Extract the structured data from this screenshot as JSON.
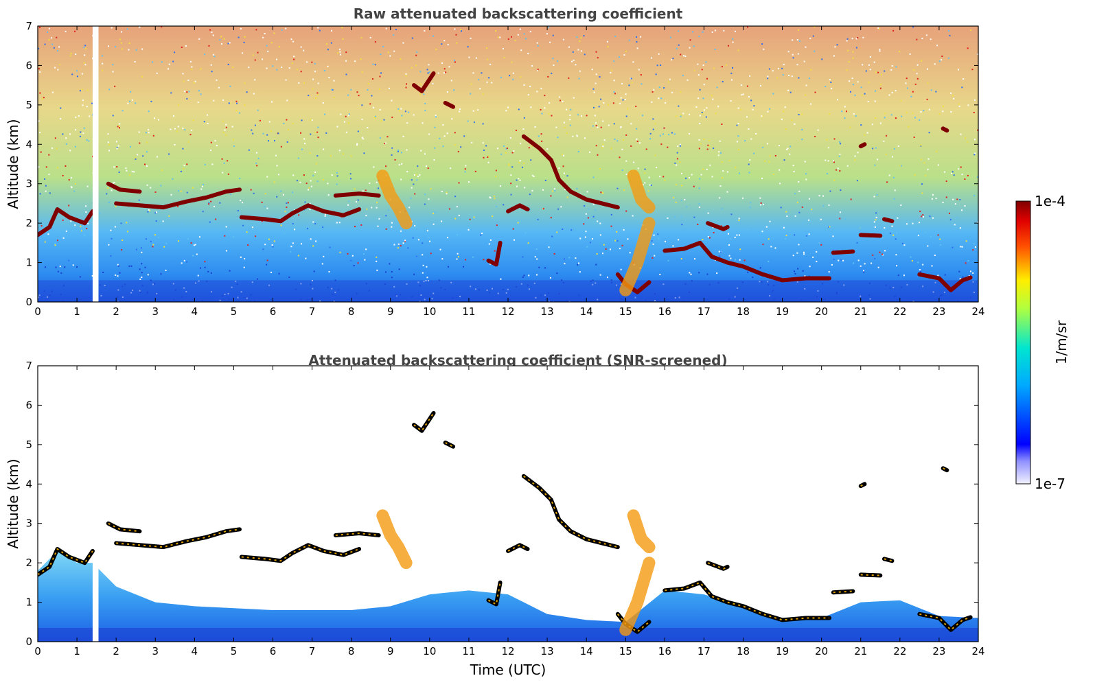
{
  "chart_data": [
    {
      "type": "heatmap",
      "title": "Raw attenuated backscattering coefficient",
      "xlabel": "",
      "ylabel": "Altitude (km)",
      "xlim": [
        0,
        24
      ],
      "ylim": [
        0,
        7
      ],
      "x_ticks": [
        "0",
        "1",
        "2",
        "3",
        "4",
        "5",
        "6",
        "7",
        "8",
        "9",
        "10",
        "11",
        "12",
        "13",
        "14",
        "15",
        "16",
        "17",
        "18",
        "19",
        "20",
        "21",
        "22",
        "23",
        "24"
      ],
      "y_ticks": [
        "0",
        "1",
        "2",
        "3",
        "4",
        "5",
        "6",
        "7"
      ],
      "features": [
        {
          "kind": "layer",
          "points": [
            [
              0.0,
              1.7
            ],
            [
              0.3,
              1.9
            ],
            [
              0.5,
              2.35
            ],
            [
              0.8,
              2.15
            ],
            [
              1.2,
              2.0
            ],
            [
              1.4,
              2.3
            ]
          ]
        },
        {
          "kind": "layer",
          "points": [
            [
              1.8,
              3.0
            ],
            [
              2.1,
              2.85
            ],
            [
              2.6,
              2.8
            ]
          ]
        },
        {
          "kind": "layer",
          "points": [
            [
              2.0,
              2.5
            ],
            [
              2.6,
              2.45
            ],
            [
              3.2,
              2.4
            ],
            [
              3.8,
              2.55
            ],
            [
              4.3,
              2.65
            ],
            [
              4.8,
              2.8
            ],
            [
              5.15,
              2.85
            ]
          ]
        },
        {
          "kind": "layer",
          "points": [
            [
              5.2,
              2.15
            ],
            [
              5.8,
              2.1
            ],
            [
              6.2,
              2.05
            ],
            [
              6.5,
              2.25
            ],
            [
              6.9,
              2.45
            ],
            [
              7.3,
              2.3
            ],
            [
              7.8,
              2.2
            ],
            [
              8.2,
              2.35
            ]
          ]
        },
        {
          "kind": "layer",
          "points": [
            [
              7.6,
              2.7
            ],
            [
              8.2,
              2.75
            ],
            [
              8.7,
              2.7
            ]
          ]
        },
        {
          "kind": "layer",
          "points": [
            [
              9.6,
              5.5
            ],
            [
              9.8,
              5.35
            ],
            [
              10.1,
              5.8
            ]
          ]
        },
        {
          "kind": "layer",
          "points": [
            [
              10.4,
              5.05
            ],
            [
              10.6,
              4.95
            ]
          ]
        },
        {
          "kind": "layer",
          "points": [
            [
              11.5,
              1.05
            ],
            [
              11.7,
              0.95
            ],
            [
              11.8,
              1.5
            ]
          ]
        },
        {
          "kind": "layer",
          "points": [
            [
              12.0,
              2.3
            ],
            [
              12.3,
              2.45
            ],
            [
              12.5,
              2.35
            ]
          ]
        },
        {
          "kind": "layer",
          "points": [
            [
              12.4,
              4.2
            ],
            [
              12.8,
              3.9
            ],
            [
              13.1,
              3.6
            ],
            [
              13.3,
              3.1
            ],
            [
              13.6,
              2.8
            ],
            [
              14.0,
              2.6
            ],
            [
              14.4,
              2.5
            ],
            [
              14.8,
              2.4
            ]
          ]
        },
        {
          "kind": "layer",
          "points": [
            [
              14.8,
              0.7
            ],
            [
              15.0,
              0.45
            ],
            [
              15.3,
              0.25
            ],
            [
              15.6,
              0.5
            ]
          ]
        },
        {
          "kind": "layer",
          "points": [
            [
              16.0,
              1.3
            ],
            [
              16.5,
              1.35
            ],
            [
              16.9,
              1.5
            ],
            [
              17.2,
              1.15
            ],
            [
              17.6,
              1.0
            ],
            [
              18.0,
              0.9
            ],
            [
              18.5,
              0.7
            ],
            [
              19.0,
              0.55
            ],
            [
              19.6,
              0.6
            ],
            [
              20.2,
              0.6
            ]
          ]
        },
        {
          "kind": "layer",
          "points": [
            [
              17.1,
              2.0
            ],
            [
              17.5,
              1.85
            ],
            [
              17.6,
              1.9
            ]
          ]
        },
        {
          "kind": "layer",
          "points": [
            [
              20.3,
              1.25
            ],
            [
              20.8,
              1.28
            ]
          ]
        },
        {
          "kind": "layer",
          "points": [
            [
              21.0,
              1.7
            ],
            [
              21.5,
              1.68
            ]
          ]
        },
        {
          "kind": "layer",
          "points": [
            [
              22.5,
              0.7
            ],
            [
              23.0,
              0.6
            ],
            [
              23.3,
              0.3
            ],
            [
              23.6,
              0.55
            ],
            [
              23.8,
              0.62
            ]
          ]
        },
        {
          "kind": "layer",
          "points": [
            [
              21.0,
              3.95
            ],
            [
              21.1,
              4.0
            ]
          ]
        },
        {
          "kind": "layer",
          "points": [
            [
              21.6,
              2.1
            ],
            [
              21.8,
              2.05
            ]
          ]
        },
        {
          "kind": "layer",
          "points": [
            [
              23.1,
              4.4
            ],
            [
              23.2,
              4.35
            ]
          ]
        },
        {
          "kind": "plume",
          "points": [
            [
              8.8,
              3.2
            ],
            [
              9.0,
              2.7
            ],
            [
              9.2,
              2.4
            ],
            [
              9.4,
              2.0
            ]
          ]
        },
        {
          "kind": "plume",
          "points": [
            [
              15.2,
              3.2
            ],
            [
              15.4,
              2.6
            ],
            [
              15.6,
              2.4
            ]
          ]
        },
        {
          "kind": "plume",
          "points": [
            [
              15.0,
              0.3
            ],
            [
              15.3,
              1.0
            ],
            [
              15.6,
              2.0
            ]
          ]
        }
      ],
      "data_gap": [
        1.4,
        1.55
      ]
    },
    {
      "type": "heatmap",
      "title": "Attenuated backscattering coefficient (SNR-screened)",
      "xlabel": "Time (UTC)",
      "ylabel": "Altitude (km)",
      "xlim": [
        0,
        24
      ],
      "ylim": [
        0,
        7
      ],
      "x_ticks": [
        "0",
        "1",
        "2",
        "3",
        "4",
        "5",
        "6",
        "7",
        "8",
        "9",
        "10",
        "11",
        "12",
        "13",
        "14",
        "15",
        "16",
        "17",
        "18",
        "19",
        "20",
        "21",
        "22",
        "23",
        "24"
      ],
      "y_ticks": [
        "0",
        "1",
        "2",
        "3",
        "4",
        "5",
        "6",
        "7"
      ],
      "data_gap": [
        1.4,
        1.55
      ]
    }
  ],
  "colorbar": {
    "label": "1/m/sr",
    "max_label": "1e-4",
    "min_label": "1e-7",
    "colormap": "jet",
    "scale": "log"
  },
  "colors": {
    "layer": "#7f0000",
    "background_low": "#1a4fd8",
    "background_high": "#d62828"
  }
}
